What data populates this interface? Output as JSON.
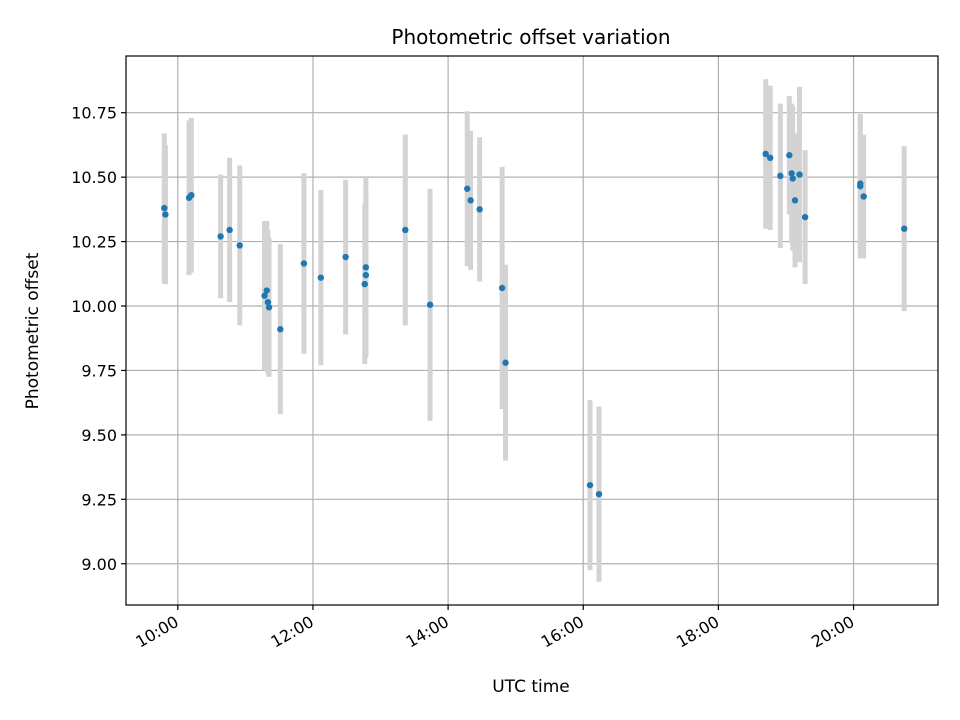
{
  "chart_data": {
    "type": "scatter",
    "title": "Photometric offset variation",
    "xlabel": "UTC time",
    "ylabel": "Photometric offset",
    "xlim": [
      "09:14",
      "21:15"
    ],
    "ylim": [
      8.84,
      10.97
    ],
    "x_ticks": [
      "10:00",
      "12:00",
      "14:00",
      "16:00",
      "18:00",
      "20:00"
    ],
    "y_ticks": [
      "9.00",
      "9.25",
      "9.50",
      "9.75",
      "10.00",
      "10.25",
      "10.50",
      "10.75"
    ],
    "grid": true,
    "marker_color": "#1f77b4",
    "errorbar_color": "#d3d3d3",
    "x": [
      "09:48",
      "09:49",
      "10:10",
      "10:12",
      "10:38",
      "10:46",
      "10:55",
      "11:17",
      "11:19",
      "11:20",
      "11:21",
      "11:31",
      "11:52",
      "12:07",
      "12:29",
      "12:46",
      "12:47",
      "12:47",
      "13:22",
      "13:44",
      "14:17",
      "14:20",
      "14:28",
      "14:48",
      "14:51",
      "16:06",
      "16:14",
      "18:42",
      "18:46",
      "18:55",
      "19:03",
      "19:05",
      "19:06",
      "19:08",
      "19:12",
      "19:17",
      "20:06",
      "20:06",
      "20:09",
      "20:45"
    ],
    "y": [
      10.38,
      10.355,
      10.42,
      10.43,
      10.27,
      10.295,
      10.235,
      10.04,
      10.06,
      10.015,
      9.995,
      9.91,
      10.165,
      10.11,
      10.19,
      10.085,
      10.12,
      10.15,
      10.295,
      10.005,
      10.455,
      10.41,
      10.375,
      10.07,
      9.78,
      9.305,
      9.27,
      10.59,
      10.575,
      10.505,
      10.585,
      10.515,
      10.495,
      10.41,
      10.51,
      10.345,
      10.465,
      10.475,
      10.425,
      10.3
    ],
    "yerr": [
      0.29,
      0.27,
      0.3,
      0.3,
      0.24,
      0.28,
      0.31,
      0.29,
      0.27,
      0.28,
      0.27,
      0.33,
      0.35,
      0.34,
      0.3,
      0.31,
      0.31,
      0.35,
      0.37,
      0.45,
      0.3,
      0.27,
      0.28,
      0.47,
      0.38,
      0.33,
      0.34,
      0.29,
      0.28,
      0.28,
      0.23,
      0.27,
      0.28,
      0.26,
      0.34,
      0.26,
      0.28,
      0.25,
      0.24,
      0.32
    ]
  }
}
